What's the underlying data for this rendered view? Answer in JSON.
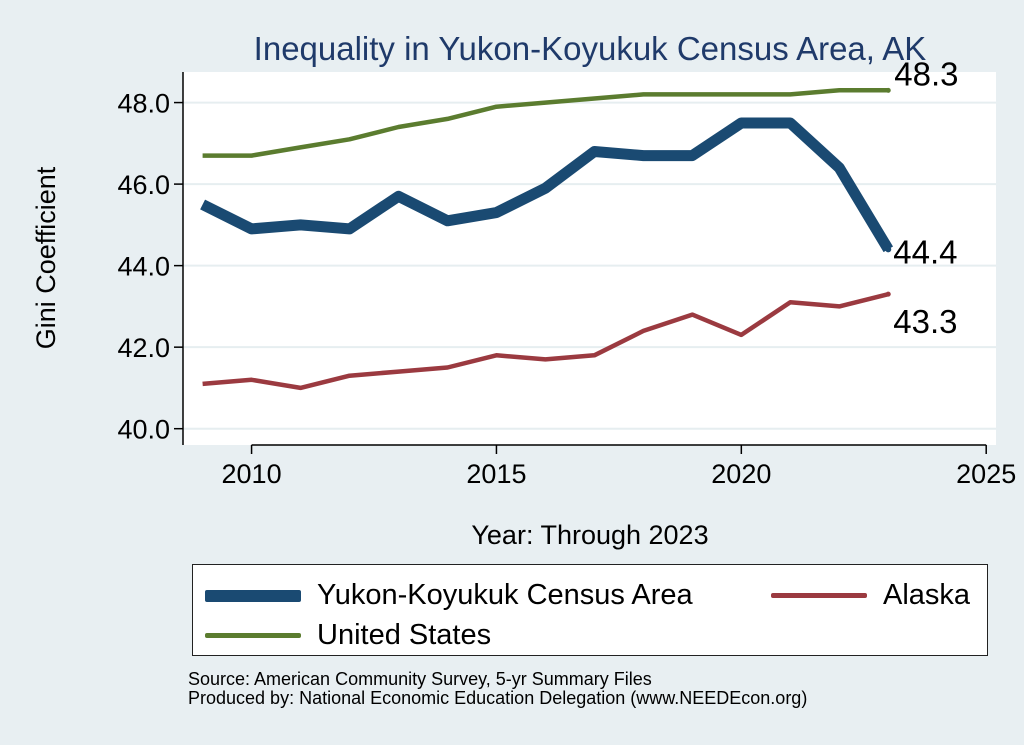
{
  "chart_data": {
    "type": "line",
    "title": "Inequality in Yukon-Koyukuk Census Area, AK",
    "xlabel": "Year: Through 2023",
    "ylabel": "Gini Coefficient",
    "xlim": [
      2008.6,
      2025.2
    ],
    "ylim": [
      39.6,
      48.75
    ],
    "xticks": [
      2010,
      2015,
      2020,
      2025
    ],
    "yticks": [
      40.0,
      42.0,
      44.0,
      46.0,
      48.0
    ],
    "ytick_labels": [
      "40.0",
      "42.0",
      "44.0",
      "46.0",
      "48.0"
    ],
    "grid": true,
    "legend_position": "bottom",
    "series": [
      {
        "name": "Yukon-Koyukuk Census Area",
        "color": "#1a4a72",
        "x": [
          2009,
          2010,
          2011,
          2012,
          2013,
          2014,
          2015,
          2016,
          2017,
          2018,
          2019,
          2020,
          2021,
          2022,
          2023
        ],
        "values": [
          45.5,
          44.9,
          45.0,
          44.9,
          45.7,
          45.1,
          45.3,
          45.9,
          46.8,
          46.7,
          46.7,
          47.5,
          47.5,
          46.4,
          44.4
        ],
        "end_label": "44.4"
      },
      {
        "name": "Alaska",
        "color": "#9b3a40",
        "x": [
          2009,
          2010,
          2011,
          2012,
          2013,
          2014,
          2015,
          2016,
          2017,
          2018,
          2019,
          2020,
          2021,
          2022,
          2023
        ],
        "values": [
          41.1,
          41.2,
          41.0,
          41.3,
          41.4,
          41.5,
          41.8,
          41.7,
          41.8,
          42.4,
          42.8,
          42.3,
          43.1,
          43.0,
          43.3
        ],
        "end_label": "43.3"
      },
      {
        "name": "United States",
        "color": "#5b7c2f",
        "x": [
          2009,
          2010,
          2011,
          2012,
          2013,
          2014,
          2015,
          2016,
          2017,
          2018,
          2019,
          2020,
          2021,
          2022,
          2023
        ],
        "values": [
          46.7,
          46.7,
          46.9,
          47.1,
          47.4,
          47.6,
          47.9,
          48.0,
          48.1,
          48.2,
          48.2,
          48.2,
          48.2,
          48.3,
          48.3
        ],
        "end_label": "48.3"
      }
    ]
  },
  "footer": {
    "source": "Source: American Community Survey, 5-yr Summary Files",
    "producer": "Produced by: National Economic Education Delegation (www.NEEDEcon.org)"
  }
}
